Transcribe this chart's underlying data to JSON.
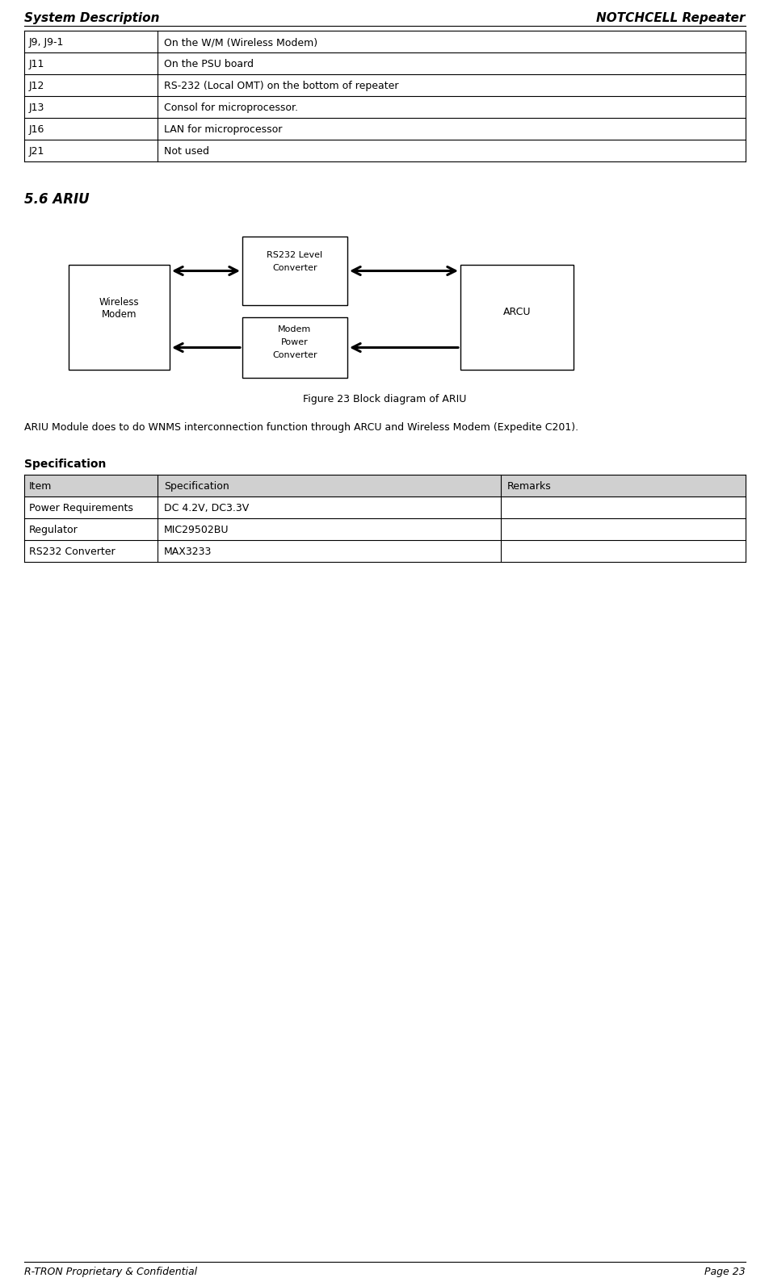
{
  "page_bg": "#ffffff",
  "header_left": "System Description",
  "header_right": "NOTCHCELL Repeater",
  "footer_left": "R-TRON Proprietary & Confidential",
  "footer_right": "Page 23",
  "table1_rows": [
    [
      "J9, J9-1",
      "On the W/M (Wireless Modem)"
    ],
    [
      "J11",
      "On the PSU board"
    ],
    [
      "J12",
      "RS-232 (Local OMT) on the bottom of repeater"
    ],
    [
      "J13",
      "Consol for microprocessor."
    ],
    [
      "J16",
      "LAN for microprocessor"
    ],
    [
      "J21",
      "Not used"
    ]
  ],
  "section_title": "5.6 ARIU",
  "figure_caption": "Figure 23 Block diagram of ARIU",
  "description_text": "ARIU Module does to do WNMS interconnection function through ARCU and Wireless Modem (Expedite C201).",
  "spec_title": "Specification",
  "spec_header": [
    "Item",
    "Specification",
    "Remarks"
  ],
  "spec_rows": [
    [
      "Power Requirements",
      "DC 4.2V, DC3.3V",
      ""
    ],
    [
      "Regulator",
      "MIC29502BU",
      ""
    ],
    [
      "RS232 Converter",
      "MAX3233",
      ""
    ]
  ],
  "table_border_color": "#000000",
  "table_header_bg": "#d0d0d0",
  "table_row_bg": "#ffffff",
  "body_font_size": 9,
  "diagram_box_color": "#000000",
  "diagram_bg": "#ffffff"
}
